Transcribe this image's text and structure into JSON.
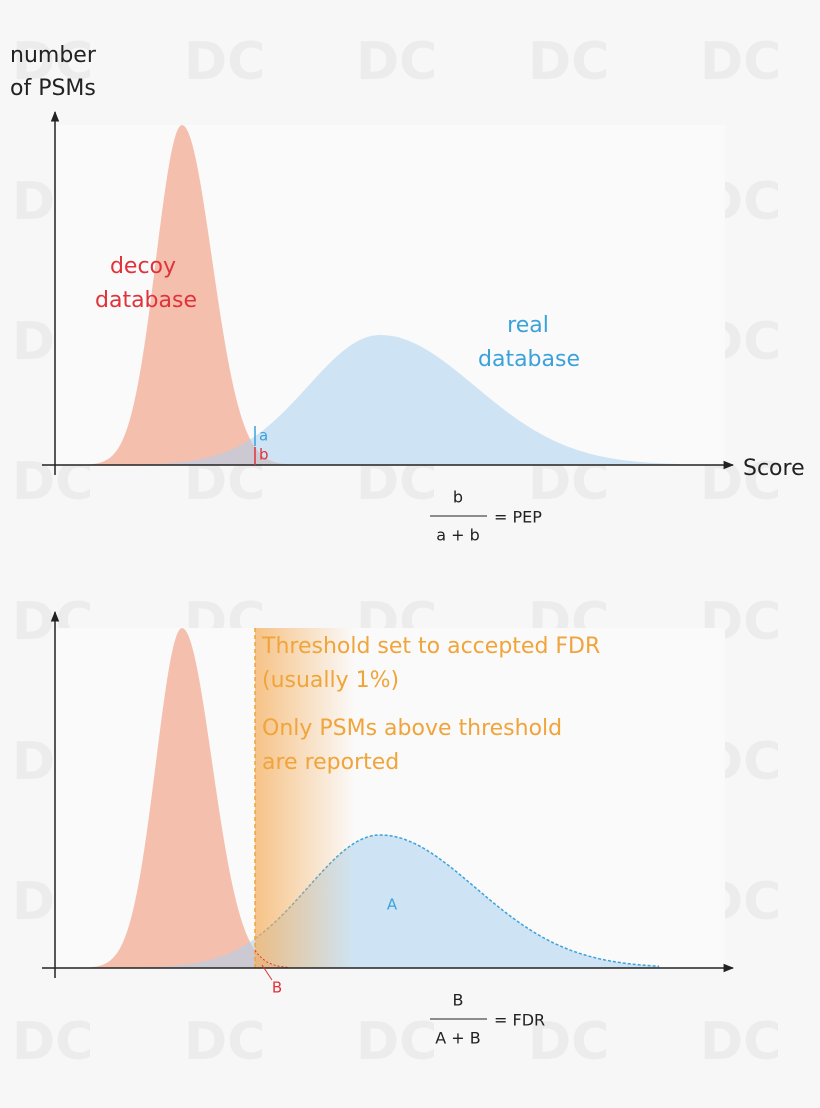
{
  "watermark": "DC",
  "top": {
    "y_label": [
      "number",
      "of PSMs"
    ],
    "decoy_label": [
      "decoy",
      "database"
    ],
    "real_label": [
      "real",
      "database"
    ],
    "a": "a",
    "b": "b",
    "x_label": "Score",
    "formula": {
      "numerator": "b",
      "denominator": "a + b",
      "result": "= PEP"
    }
  },
  "bottom": {
    "threshold_note": [
      "Threshold set to accepted FDR",
      "(usually 1%)"
    ],
    "report_note": [
      "Only PSMs above threshold",
      "are reported"
    ],
    "A": "A",
    "B": "B",
    "formula": {
      "numerator": "B",
      "denominator": "A + B",
      "result": "= FDR"
    }
  }
}
